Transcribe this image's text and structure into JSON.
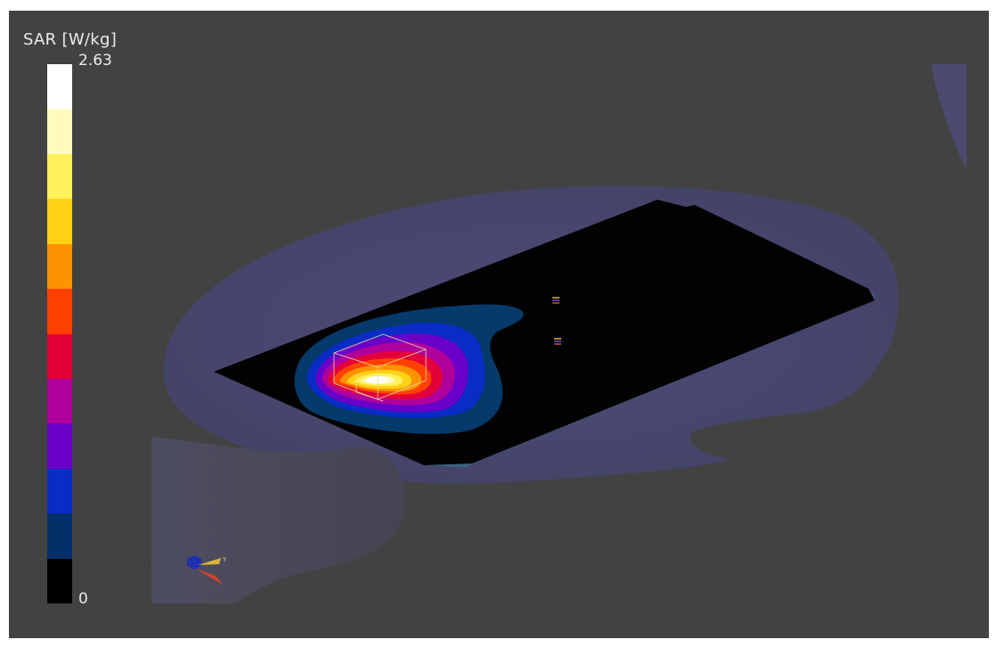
{
  "colorbar": {
    "title": "SAR [W/kg]",
    "max_label": "2.63",
    "min_label": "0",
    "segments_top_to_bottom": [
      "#ffffff",
      "#fffbbd",
      "#fff15a",
      "#ffd215",
      "#ff9200",
      "#ff4000",
      "#e3003a",
      "#b0009b",
      "#6a00c8",
      "#0a2bc6",
      "#04306a",
      "#000000"
    ]
  },
  "axes_gizmo": {
    "y_label": "Y"
  },
  "colors": {
    "viewport_background": "#424242",
    "phantom_shell": "#4a4a78",
    "board": "#000000"
  }
}
